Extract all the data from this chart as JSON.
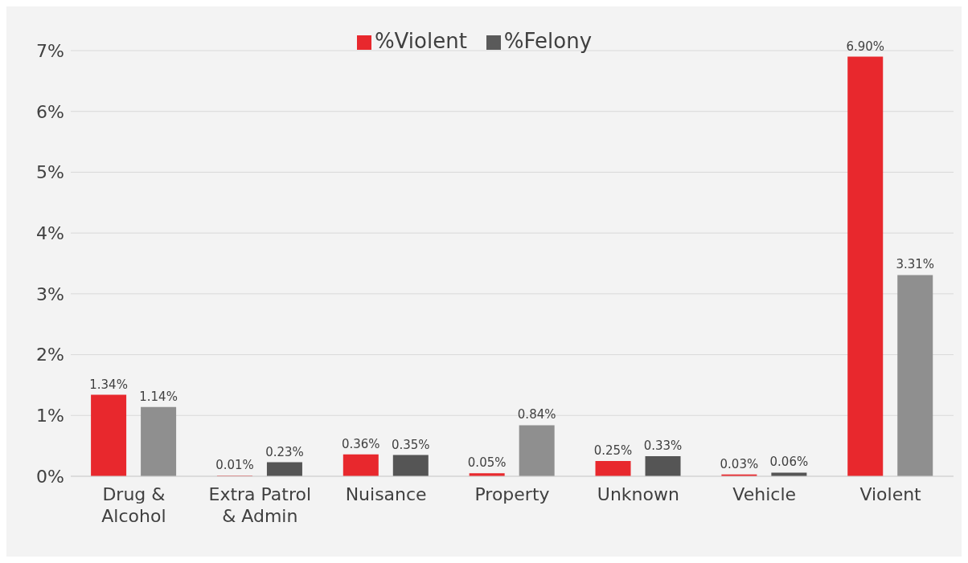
{
  "chart_data": {
    "type": "bar",
    "categories": [
      "Drug & Alcohol",
      "Extra Patrol & Admin",
      "Nuisance",
      "Property",
      "Unknown",
      "Vehicle",
      "Violent"
    ],
    "series": [
      {
        "name": "%Violent",
        "color": "#e8282d",
        "values": [
          1.34,
          0.01,
          0.36,
          0.05,
          0.25,
          0.03,
          6.9
        ],
        "value_labels": [
          "1.34%",
          "0.01%",
          "0.36%",
          "0.05%",
          "0.25%",
          "0.03%",
          "6.90%"
        ]
      },
      {
        "name": "%Felony",
        "color": "#5a5a5a",
        "colors": [
          "#8f8f8f",
          "#555555",
          "#555555",
          "#8f8f8f",
          "#555555",
          "#555555",
          "#8f8f8f"
        ],
        "values": [
          1.14,
          0.23,
          0.35,
          0.84,
          0.33,
          0.06,
          3.31
        ],
        "value_labels": [
          "1.14%",
          "0.23%",
          "0.35%",
          "0.84%",
          "0.33%",
          "0.06%",
          "3.31%"
        ]
      }
    ],
    "ylim": [
      0,
      7
    ],
    "yticks": [
      {
        "value": 0,
        "label": "0%"
      },
      {
        "value": 1,
        "label": "1%"
      },
      {
        "value": 2,
        "label": "2%"
      },
      {
        "value": 3,
        "label": "3%"
      },
      {
        "value": 4,
        "label": "4%"
      },
      {
        "value": 5,
        "label": "5%"
      },
      {
        "value": 6,
        "label": "6%"
      },
      {
        "value": 7,
        "label": "7%"
      }
    ],
    "grid": "y",
    "legend": "top"
  }
}
